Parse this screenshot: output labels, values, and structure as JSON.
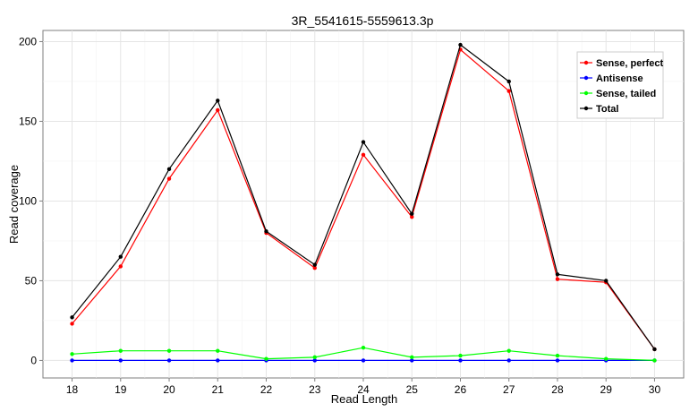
{
  "chart_data": {
    "type": "line",
    "title": "3R_5541615-5559613.3p",
    "xlabel": "Read Length",
    "ylabel": "Read coverage",
    "x": [
      18,
      19,
      20,
      21,
      22,
      23,
      24,
      25,
      26,
      27,
      28,
      29,
      30
    ],
    "xticks": [
      "18",
      "19",
      "20",
      "21",
      "22",
      "23",
      "24",
      "25",
      "26",
      "27",
      "28",
      "29",
      "30"
    ],
    "yticks": [
      "0",
      "50",
      "100",
      "150",
      "200"
    ],
    "xlim": [
      17.4,
      30.6
    ],
    "ylim": [
      -11,
      207
    ],
    "grid": true,
    "legend_position": "top-right",
    "series": [
      {
        "name": "Sense, perfect",
        "color": "#ff0000",
        "values": [
          23,
          59,
          114,
          157,
          80,
          58,
          129,
          90,
          195,
          169,
          51,
          49,
          7
        ]
      },
      {
        "name": "Antisense",
        "color": "#0000ff",
        "values": [
          0,
          0,
          0,
          0,
          0,
          0,
          0,
          0,
          0,
          0,
          0,
          0,
          0
        ]
      },
      {
        "name": "Sense, tailed",
        "color": "#00ff00",
        "values": [
          4,
          6,
          6,
          6,
          1,
          2,
          8,
          2,
          3,
          6,
          3,
          1,
          0
        ]
      },
      {
        "name": "Total",
        "color": "#000000",
        "values": [
          27,
          65,
          120,
          163,
          81,
          60,
          137,
          92,
          198,
          175,
          54,
          50,
          7
        ]
      }
    ]
  }
}
